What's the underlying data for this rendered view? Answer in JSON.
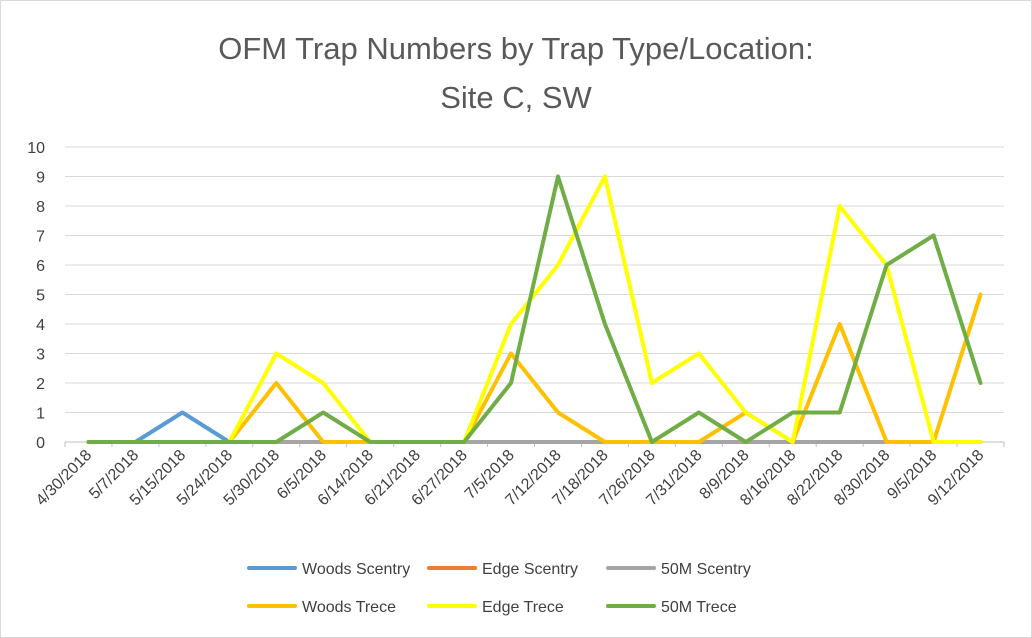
{
  "chart_data": {
    "type": "line",
    "title_lines": [
      "OFM Trap Numbers by Trap Type/Location:",
      "Site C, SW"
    ],
    "xlabel": "",
    "ylabel": "",
    "ylim": [
      0,
      10
    ],
    "yticks": [
      0,
      1,
      2,
      3,
      4,
      5,
      6,
      7,
      8,
      9,
      10
    ],
    "grid": "horizontal",
    "legend_position": "bottom",
    "categories": [
      "4/30/2018",
      "5/7/2018",
      "5/15/2018",
      "5/24/2018",
      "5/30/2018",
      "6/5/2018",
      "6/14/2018",
      "6/21/2018",
      "6/27/2018",
      "7/5/2018",
      "7/12/2018",
      "7/18/2018",
      "7/26/2018",
      "7/31/2018",
      "8/9/2018",
      "8/16/2018",
      "8/22/2018",
      "8/30/2018",
      "9/5/2018",
      "9/12/2018"
    ],
    "series": [
      {
        "name": "Woods Scentry",
        "color": "#5b9bd5",
        "values": [
          0,
          0,
          1,
          0,
          null,
          null,
          null,
          null,
          null,
          null,
          null,
          null,
          null,
          null,
          null,
          null,
          null,
          null,
          null,
          null
        ]
      },
      {
        "name": "Edge Scentry",
        "color": "#ed7d31",
        "values": [
          0,
          0,
          0,
          0,
          0,
          0,
          0,
          0,
          0,
          0,
          0,
          0,
          0,
          0,
          0,
          0,
          0,
          0,
          0,
          0
        ]
      },
      {
        "name": "50M Scentry",
        "color": "#a5a5a5",
        "values": [
          0,
          0,
          0,
          0,
          0,
          0,
          0,
          0,
          0,
          0,
          0,
          0,
          0,
          0,
          0,
          0,
          0,
          0,
          0,
          0
        ]
      },
      {
        "name": "Woods Trece",
        "color": "#ffc000",
        "values": [
          0,
          0,
          0,
          0,
          2,
          0,
          0,
          0,
          0,
          3,
          1,
          0,
          0,
          0,
          1,
          0,
          4,
          0,
          0,
          5
        ]
      },
      {
        "name": "Edge Trece",
        "color": "#ffff00",
        "values": [
          0,
          0,
          0,
          0,
          3,
          2,
          0,
          0,
          0,
          4,
          6,
          9,
          2,
          3,
          1,
          0,
          8,
          6,
          0,
          0
        ]
      },
      {
        "name": "50M Trece",
        "color": "#70ad47",
        "values": [
          0,
          0,
          0,
          0,
          0,
          1,
          0,
          0,
          0,
          2,
          9,
          4,
          0,
          1,
          0,
          1,
          1,
          6,
          7,
          2
        ]
      }
    ]
  }
}
